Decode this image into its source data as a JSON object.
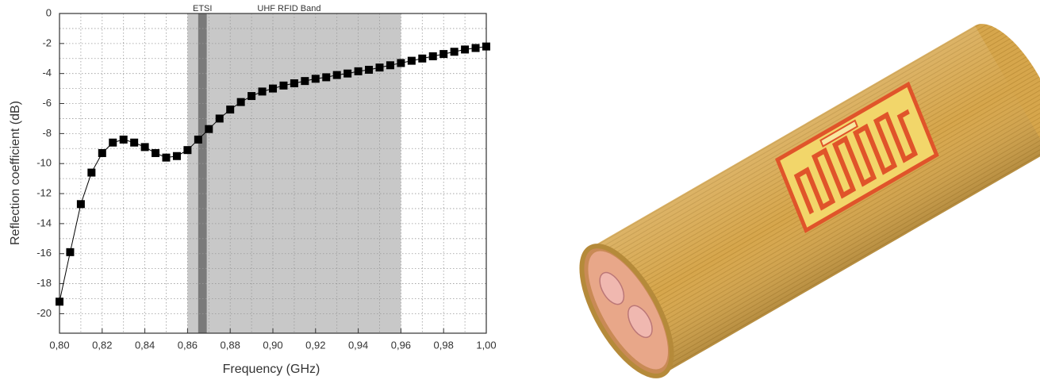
{
  "chart_data": {
    "type": "line",
    "xlabel": "Frequency (GHz)",
    "ylabel": "Reflection coefficient (dB)",
    "x": [
      0.8,
      0.805,
      0.81,
      0.815,
      0.82,
      0.825,
      0.83,
      0.835,
      0.84,
      0.845,
      0.85,
      0.855,
      0.86,
      0.865,
      0.87,
      0.875,
      0.88,
      0.885,
      0.89,
      0.895,
      0.9,
      0.905,
      0.91,
      0.915,
      0.92,
      0.925,
      0.93,
      0.935,
      0.94,
      0.945,
      0.95,
      0.955,
      0.96,
      0.965,
      0.97,
      0.975,
      0.98,
      0.985,
      0.99,
      0.995,
      1.0
    ],
    "values": [
      -19.2,
      -15.9,
      -12.7,
      -10.6,
      -9.3,
      -8.6,
      -8.4,
      -8.6,
      -8.9,
      -9.3,
      -9.6,
      -9.5,
      -9.1,
      -8.4,
      -7.7,
      -7.0,
      -6.4,
      -5.9,
      -5.5,
      -5.2,
      -5.0,
      -4.8,
      -4.65,
      -4.5,
      -4.35,
      -4.25,
      -4.1,
      -4.0,
      -3.85,
      -3.75,
      -3.6,
      -3.45,
      -3.3,
      -3.15,
      -3.0,
      -2.85,
      -2.7,
      -2.55,
      -2.4,
      -2.3,
      -2.2
    ],
    "color": "#000000",
    "bands": [
      {
        "name": "UHF RFID Band",
        "range": [
          0.86,
          0.96
        ],
        "color": "#c8c8c8"
      },
      {
        "name": "ETSI",
        "range": [
          0.865,
          0.869
        ],
        "color": "#7a7a7a"
      }
    ],
    "xlim": [
      0.8,
      1.0
    ],
    "xticks": [
      {
        "value": 0.8,
        "label": "0,80"
      },
      {
        "value": 0.82,
        "label": "0,82"
      },
      {
        "value": 0.84,
        "label": "0,84"
      },
      {
        "value": 0.86,
        "label": "0,86"
      },
      {
        "value": 0.88,
        "label": "0,88"
      },
      {
        "value": 0.9,
        "label": "0,90"
      },
      {
        "value": 0.92,
        "label": "0,92"
      },
      {
        "value": 0.94,
        "label": "0,94"
      },
      {
        "value": 0.96,
        "label": "0,96"
      },
      {
        "value": 0.98,
        "label": "0,98"
      },
      {
        "value": 1.0,
        "label": "1,00"
      }
    ],
    "ylim": [
      -21.3,
      0
    ],
    "yticks": [
      0,
      -2,
      -4,
      -6,
      -8,
      -10,
      -12,
      -14,
      -16,
      -18,
      -20
    ],
    "grid": true
  }
}
